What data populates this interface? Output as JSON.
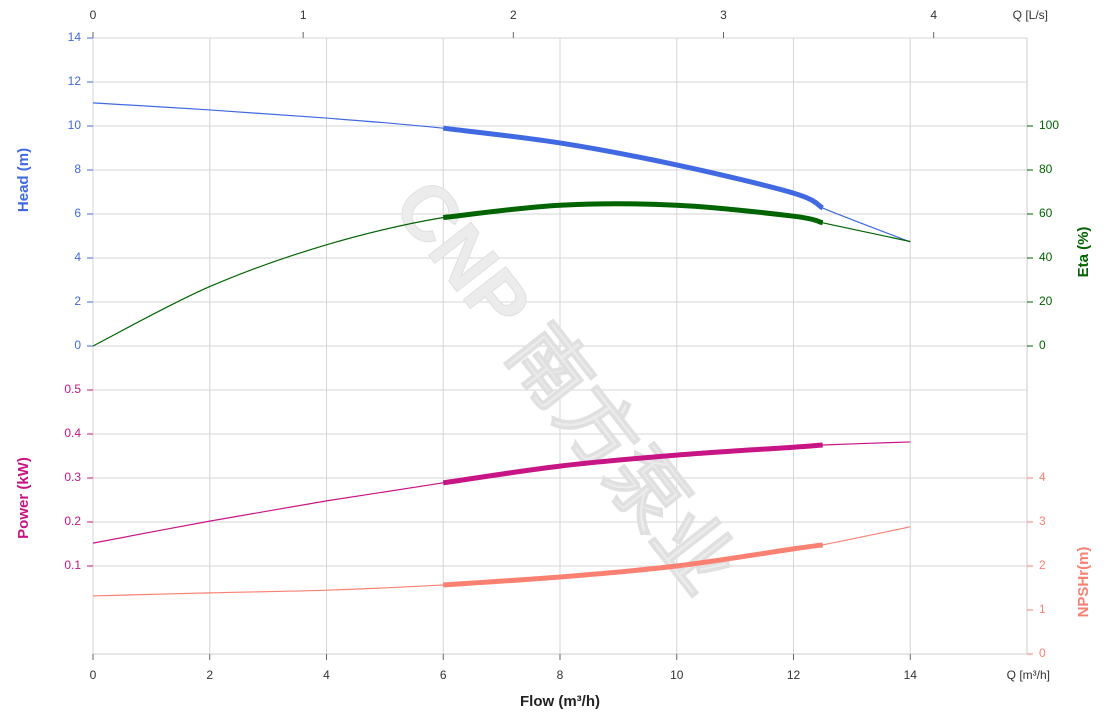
{
  "chart_data": {
    "type": "line",
    "watermark": "CNP 南方泵业",
    "x_label": "Flow (m³/h)",
    "x_unit_label": "Q [m³/h]",
    "x2_unit_label": "Q [L/s]",
    "x": [
      0,
      2,
      4,
      6,
      8,
      10,
      12,
      12.5,
      14
    ],
    "xlim": [
      0,
      16
    ],
    "xticks": [
      0,
      2,
      4,
      6,
      8,
      10,
      12,
      14
    ],
    "x2lim": [
      0,
      4.444
    ],
    "x2ticks": [
      0,
      1,
      2,
      3,
      4
    ],
    "duty_range": [
      6,
      12.5
    ],
    "grid": true,
    "y_label": "Head (m)",
    "ylim": [
      0,
      14
    ],
    "yticks": [
      0,
      2,
      4,
      6,
      8,
      10,
      12,
      14
    ],
    "y_color": "#4169e1",
    "y2_label": "Eta (%)",
    "y2lim": [
      0,
      140
    ],
    "y2ticks": [
      0,
      20,
      40,
      60,
      80,
      100
    ],
    "y2_color": "#006400",
    "y3_label": "Power (kW)",
    "y3lim": [
      -0.1,
      0.6
    ],
    "y3ticks": [
      0.1,
      0.2,
      0.3,
      0.4,
      0.5
    ],
    "y3_color": "#c71585",
    "y4_label": "NPSHr(m)",
    "y4lim": [
      0,
      7
    ],
    "y4ticks": [
      0,
      1,
      2,
      3,
      4
    ],
    "y4_color": "#fa8072",
    "series": [
      {
        "color": "#4169e1",
        "axis": "y",
        "values": [
          11.05,
          10.73,
          10.36,
          9.9,
          9.23,
          8.23,
          6.95,
          6.27,
          4.73
        ]
      },
      {
        "color": "#006400",
        "axis": "y2",
        "values": [
          0,
          27,
          46,
          58.4,
          64,
          64,
          59,
          56,
          47.5
        ]
      },
      {
        "color": "#c71585",
        "axis": "y3",
        "values": [
          0.152,
          0.202,
          0.248,
          0.289,
          0.327,
          0.352,
          0.37,
          0.375,
          0.382
        ]
      },
      {
        "color": "#fa8072",
        "axis": "y4",
        "values": [
          1.32,
          1.39,
          1.45,
          1.57,
          1.75,
          2.0,
          2.39,
          2.48,
          2.89
        ]
      }
    ]
  }
}
